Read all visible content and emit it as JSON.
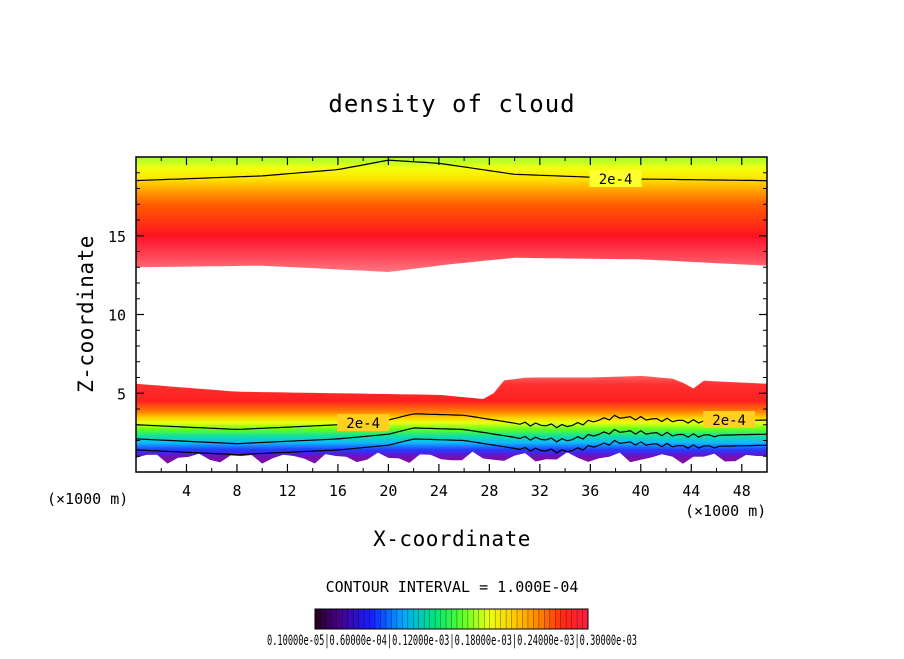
{
  "chart_data": {
    "type": "heatmap",
    "title": "density of cloud",
    "xlabel": "X-coordinate",
    "ylabel": "Z-coordinate",
    "x_unit": "(×1000 m)",
    "xlim": [
      0,
      50
    ],
    "ylim": [
      0,
      20
    ],
    "x_ticks": [
      4,
      8,
      12,
      16,
      20,
      24,
      28,
      32,
      36,
      40,
      44,
      48
    ],
    "y_ticks": [
      5,
      10,
      15
    ],
    "contour_interval_text": "CONTOUR INTERVAL = 1.000E-04",
    "contour_labels": [
      {
        "text": "2e-4",
        "x": 38,
        "z": 18.6
      },
      {
        "text": "2e-4",
        "x": 18,
        "z": 3.1
      },
      {
        "text": "2e-4",
        "x": 47,
        "z": 3.3
      }
    ],
    "upper_layer": {
      "top_z": 19.8,
      "base_z": [
        [
          0,
          13.0
        ],
        [
          10,
          13.1
        ],
        [
          20,
          12.7
        ],
        [
          25,
          13.2
        ],
        [
          30,
          13.6
        ],
        [
          40,
          13.5
        ],
        [
          50,
          13.1
        ]
      ],
      "peak_z": 15.0,
      "contour_2e-4_z": [
        [
          0,
          18.5
        ],
        [
          10,
          18.8
        ],
        [
          16,
          19.2
        ],
        [
          20,
          19.8
        ],
        [
          24,
          19.6
        ],
        [
          30,
          18.9
        ],
        [
          40,
          18.6
        ],
        [
          50,
          18.5
        ]
      ]
    },
    "lower_layer": {
      "bottom_z": 0.9,
      "top_z": [
        [
          0,
          5.6
        ],
        [
          8,
          5.1
        ],
        [
          16,
          5.0
        ],
        [
          24,
          4.9
        ],
        [
          28,
          4.6
        ],
        [
          29,
          5.8
        ],
        [
          31,
          6.0
        ],
        [
          36,
          6.0
        ],
        [
          40,
          6.1
        ],
        [
          43,
          5.9
        ],
        [
          44,
          5.2
        ],
        [
          45,
          5.8
        ],
        [
          50,
          5.6
        ]
      ],
      "contour_2e-4_z": [
        [
          0,
          3.0
        ],
        [
          8,
          2.7
        ],
        [
          16,
          3.0
        ],
        [
          20,
          3.3
        ],
        [
          22,
          3.7
        ],
        [
          26,
          3.6
        ],
        [
          30,
          3.1
        ],
        [
          34,
          2.9
        ],
        [
          38,
          3.5
        ],
        [
          44,
          3.2
        ],
        [
          50,
          3.3
        ]
      ]
    },
    "colorbar": {
      "tick_labels_text": "0.10000e-05|0.60000e-04|0.12000e-03|0.18000e-03|0.24000e-03|0.30000e-03",
      "segments": 50
    }
  }
}
